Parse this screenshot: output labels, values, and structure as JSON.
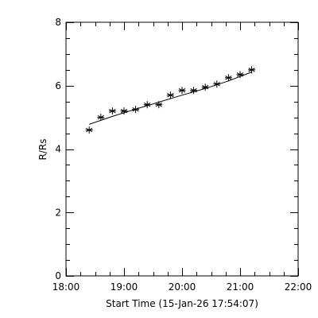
{
  "chart_data": {
    "type": "scatter",
    "xlabel": "Start Time (15-Jan-26 17:54:07)",
    "ylabel": "R/Rs",
    "xlim": [
      "18:00",
      "22:00"
    ],
    "ylim": [
      0,
      8
    ],
    "x_ticks": [
      "18:00",
      "19:00",
      "20:00",
      "21:00",
      "22:00"
    ],
    "y_ticks": [
      "0",
      "2",
      "4",
      "6",
      "8"
    ],
    "grid": false,
    "legend": "none",
    "series": [
      {
        "marker": "asterisk",
        "points": [
          {
            "x": "18:24",
            "y": 4.6
          },
          {
            "x": "18:36",
            "y": 5.0
          },
          {
            "x": "18:48",
            "y": 5.2
          },
          {
            "x": "19:00",
            "y": 5.2
          },
          {
            "x": "19:12",
            "y": 5.25
          },
          {
            "x": "19:24",
            "y": 5.4
          },
          {
            "x": "19:36",
            "y": 5.4
          },
          {
            "x": "19:48",
            "y": 5.7
          },
          {
            "x": "20:00",
            "y": 5.85
          },
          {
            "x": "20:12",
            "y": 5.85
          },
          {
            "x": "20:24",
            "y": 5.95
          },
          {
            "x": "20:36",
            "y": 6.05
          },
          {
            "x": "20:48",
            "y": 6.25
          },
          {
            "x": "21:00",
            "y": 6.35
          },
          {
            "x": "21:12",
            "y": 6.5
          }
        ]
      }
    ],
    "fit_line": [
      {
        "x": "18:24",
        "y": 4.78
      },
      {
        "x": "18:48",
        "y": 5.03
      },
      {
        "x": "19:12",
        "y": 5.26
      },
      {
        "x": "19:36",
        "y": 5.48
      },
      {
        "x": "20:00",
        "y": 5.7
      },
      {
        "x": "20:24",
        "y": 5.91
      },
      {
        "x": "20:48",
        "y": 6.15
      },
      {
        "x": "21:12",
        "y": 6.43
      }
    ]
  }
}
